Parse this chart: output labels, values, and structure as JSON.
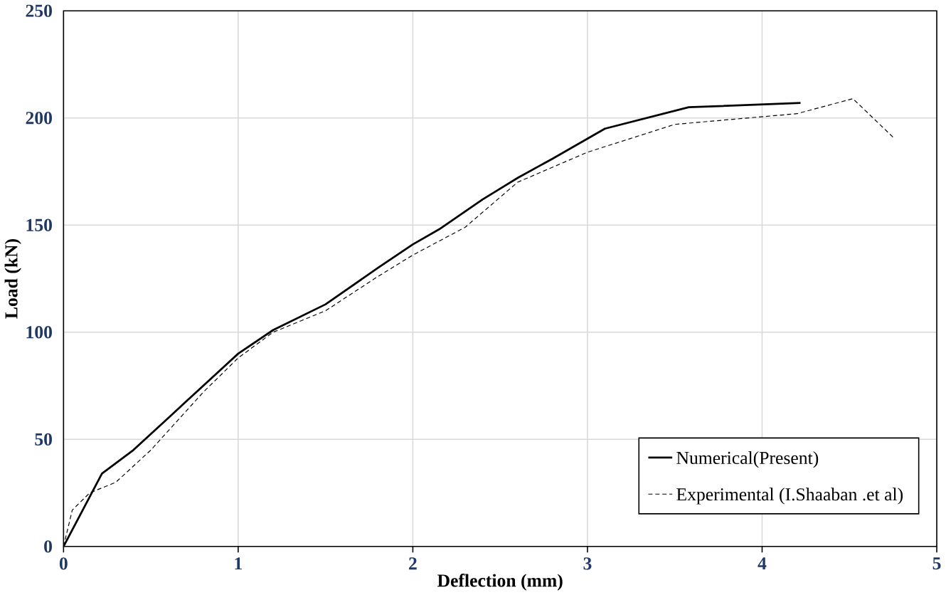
{
  "chart_data": {
    "type": "line",
    "xlabel": "Deflection (mm)",
    "ylabel": "Load (kN)",
    "xlim": [
      0,
      5
    ],
    "ylim": [
      0,
      250
    ],
    "xticks": [
      0,
      1,
      2,
      3,
      4,
      5
    ],
    "yticks": [
      0,
      50,
      100,
      150,
      200,
      250
    ],
    "grid": true,
    "legend": "bottom right",
    "marker": "none",
    "series": [
      {
        "name": "Numerical(Present)",
        "color": "#000000",
        "line_style": "solid",
        "x": [
          0,
          0.22,
          0.4,
          0.6,
          0.8,
          1.0,
          1.2,
          1.5,
          1.8,
          2.0,
          2.15,
          2.4,
          2.6,
          2.8,
          3.1,
          3.58,
          4.22
        ],
        "values": [
          0,
          34,
          45,
          60,
          75,
          90,
          101,
          113,
          130,
          141,
          148,
          162,
          172,
          181,
          195,
          205,
          207
        ]
      },
      {
        "name": "Experimental (I.Shaaban .et al)",
        "color": "#000000",
        "line_style": "dashed",
        "x": [
          0,
          0.05,
          0.15,
          0.3,
          0.5,
          0.8,
          1.0,
          1.2,
          1.5,
          1.8,
          2.0,
          2.3,
          2.6,
          3.0,
          3.5,
          4.2,
          4.52,
          4.75
        ],
        "values": [
          0,
          17,
          25,
          30,
          45,
          72,
          88,
          100,
          110,
          126,
          136,
          149,
          170,
          184,
          197,
          202,
          209,
          191
        ]
      }
    ]
  }
}
